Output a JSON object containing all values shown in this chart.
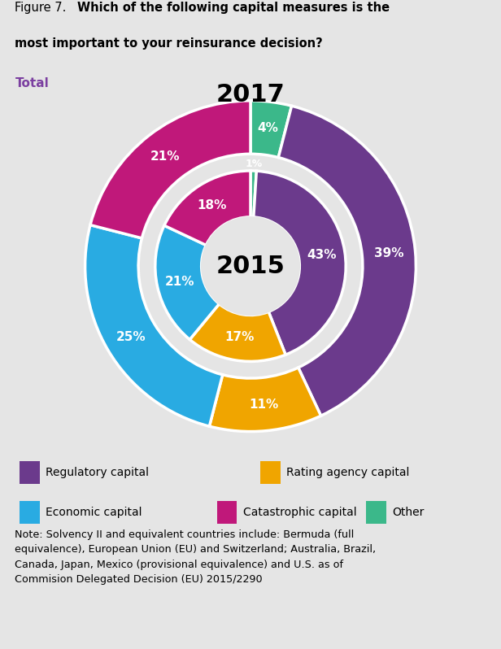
{
  "bg_color": "#e5e5e5",
  "outer_ring": {
    "values": [
      39,
      11,
      25,
      21,
      4
    ],
    "colors": [
      "#6b3a8c",
      "#f0a500",
      "#29abe2",
      "#c0187a",
      "#3bb88a"
    ],
    "pct_labels": [
      "39%",
      "11%",
      "25%",
      "21%",
      "4%"
    ]
  },
  "inner_ring": {
    "values": [
      43,
      17,
      21,
      18,
      1
    ],
    "colors": [
      "#6b3a8c",
      "#f0a500",
      "#29abe2",
      "#c0187a",
      "#3bb88a"
    ],
    "pct_labels": [
      "43%",
      "17%",
      "21%",
      "18%",
      "1%"
    ]
  },
  "legend_items": [
    {
      "label": "Regulatory capital",
      "color": "#6b3a8c"
    },
    {
      "label": "Rating agency capital",
      "color": "#f0a500"
    },
    {
      "label": "Economic capital",
      "color": "#29abe2"
    },
    {
      "label": "Catastrophic capital",
      "color": "#c0187a"
    },
    {
      "label": "Other",
      "color": "#3bb88a"
    }
  ],
  "note_text": "Note: Solvency II and equivalent countries include: Bermuda (full\nequivalence), European Union (EU) and Switzerland; Australia, Brazil,\nCanada, Japan, Mexico (provisional equivalence) and U.S. as of\nCommision Delegated Decision (EU) 2015/2290",
  "outer_order": [
    4,
    0,
    1,
    2,
    3
  ],
  "inner_order": [
    4,
    0,
    1,
    2,
    3
  ]
}
